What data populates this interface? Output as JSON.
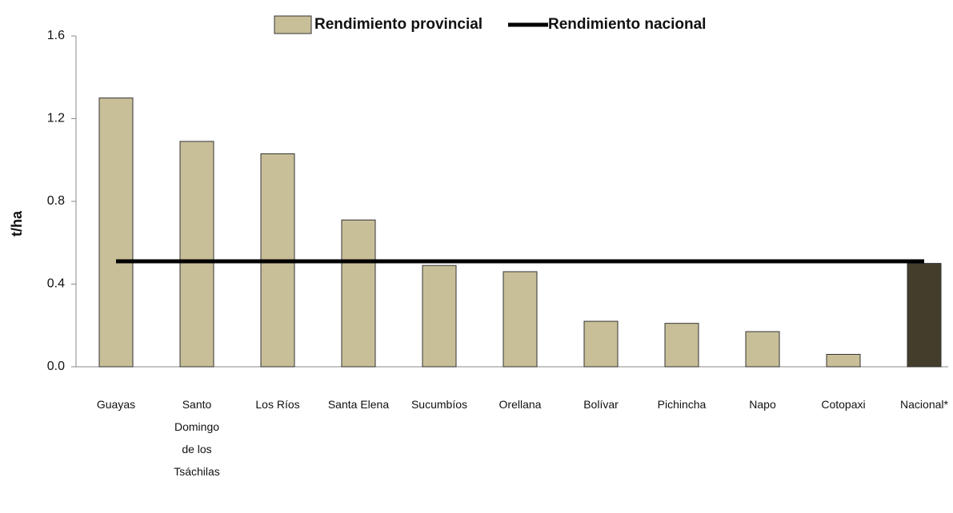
{
  "chart_data": {
    "type": "bar",
    "y_label": "t/ha",
    "categories": [
      "Guayas",
      "Santo Domingo de los Tsáchilas",
      "Los Ríos",
      "Santa Elena",
      "Sucumbíos",
      "Orellana",
      "Bolívar",
      "Pichincha",
      "Napo",
      "Cotopaxi",
      "Nacional*"
    ],
    "series": [
      {
        "name": "Rendimiento provincial",
        "type": "bar",
        "color": "#c8bf98",
        "colors": [
          "#c8bf98",
          "#c8bf98",
          "#c8bf98",
          "#c8bf98",
          "#c8bf98",
          "#c8bf98",
          "#c8bf98",
          "#c8bf98",
          "#c8bf98",
          "#c8bf98",
          "#433d2b"
        ],
        "values": [
          1.3,
          1.09,
          1.03,
          0.71,
          0.49,
          0.46,
          0.22,
          0.21,
          0.17,
          0.06,
          0.5
        ]
      },
      {
        "name": "Rendimiento nacional",
        "type": "line",
        "color": "#000000",
        "values": [
          0.51,
          0.51,
          0.51,
          0.51,
          0.51,
          0.51,
          0.51,
          0.51,
          0.51,
          0.51,
          0.51
        ]
      }
    ],
    "ylim": [
      0,
      1.6
    ],
    "yticks": [
      {
        "value": 0,
        "label": "0.0"
      },
      0.4,
      0.8,
      1.2,
      1.6
    ],
    "legend": "top"
  }
}
